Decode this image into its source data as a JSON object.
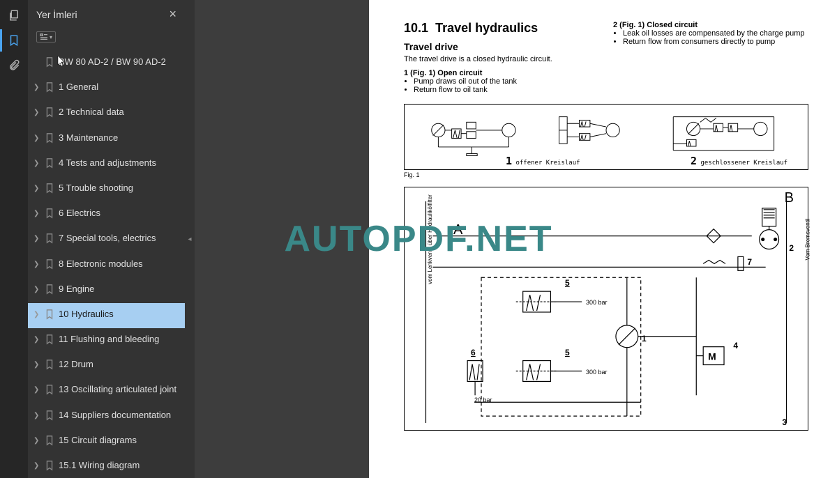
{
  "sidebar": {
    "title": "Yer İmleri",
    "items": [
      {
        "label": "BW 80 AD-2 / BW 90 AD-2",
        "has_chevron": false
      },
      {
        "label": "1 General",
        "has_chevron": true
      },
      {
        "label": "2 Technical data",
        "has_chevron": true
      },
      {
        "label": "3 Maintenance",
        "has_chevron": true
      },
      {
        "label": "4 Tests and adjustments",
        "has_chevron": true
      },
      {
        "label": "5 Trouble shooting",
        "has_chevron": true
      },
      {
        "label": "6 Electrics",
        "has_chevron": true
      },
      {
        "label": "7 Special tools, electrics",
        "has_chevron": true
      },
      {
        "label": "8 Electronic modules",
        "has_chevron": true
      },
      {
        "label": "9 Engine",
        "has_chevron": true
      },
      {
        "label": "10 Hydraulics",
        "has_chevron": true,
        "selected": true
      },
      {
        "label": "11 Flushing and bleeding",
        "has_chevron": true
      },
      {
        "label": "12 Drum",
        "has_chevron": true
      },
      {
        "label": "13 Oscillating articulated joint",
        "has_chevron": true
      },
      {
        "label": "14 Suppliers documentation",
        "has_chevron": true
      },
      {
        "label": "15 Circuit diagrams",
        "has_chevron": true
      },
      {
        "label": "15.1 Wiring diagram",
        "has_chevron": true
      }
    ]
  },
  "document": {
    "section_num": "10.1",
    "section_title": "Travel hydraulics",
    "subsection": "Travel drive",
    "intro": "The travel drive is a closed hydraulic circuit.",
    "col1_heading": "1 (Fig. 1) Open circuit",
    "col1_bullets": [
      "Pump draws oil out of the tank",
      "Return flow to oil tank"
    ],
    "col2_heading": "2 (Fig. 1) Closed circuit",
    "col2_bullets": [
      "Leak oil losses are compensated by the charge pump",
      "Return flow from consumers directly to pump"
    ],
    "fig1_caption": "Fig. 1",
    "fig1_label1_num": "1",
    "fig1_label1_text": "offener Kreislauf",
    "fig1_label2_num": "2",
    "fig1_label2_text": "geschlossener Kreislauf",
    "schematic": {
      "letter_a": "A",
      "letter_b": "B",
      "vert_left": "vom Lenkventil über Hydraulikölfilter",
      "vert_right": "Vom Bremsventil",
      "pressure_300": "300 bar",
      "pressure_20": "20 bar",
      "motor": "M",
      "nums": {
        "n1": "1",
        "n2": "2",
        "n3": "3",
        "n4": "4",
        "n5": "5",
        "n6": "6",
        "n7": "7"
      }
    }
  },
  "watermark": "AUTOPDF.NET",
  "colors": {
    "rail_bg": "#262626",
    "sidebar_bg": "#333333",
    "selected_bg": "#a7cff2",
    "accent": "#4aa4f0",
    "watermark": "#3a8888",
    "doc_bg": "#3d3d3d"
  }
}
